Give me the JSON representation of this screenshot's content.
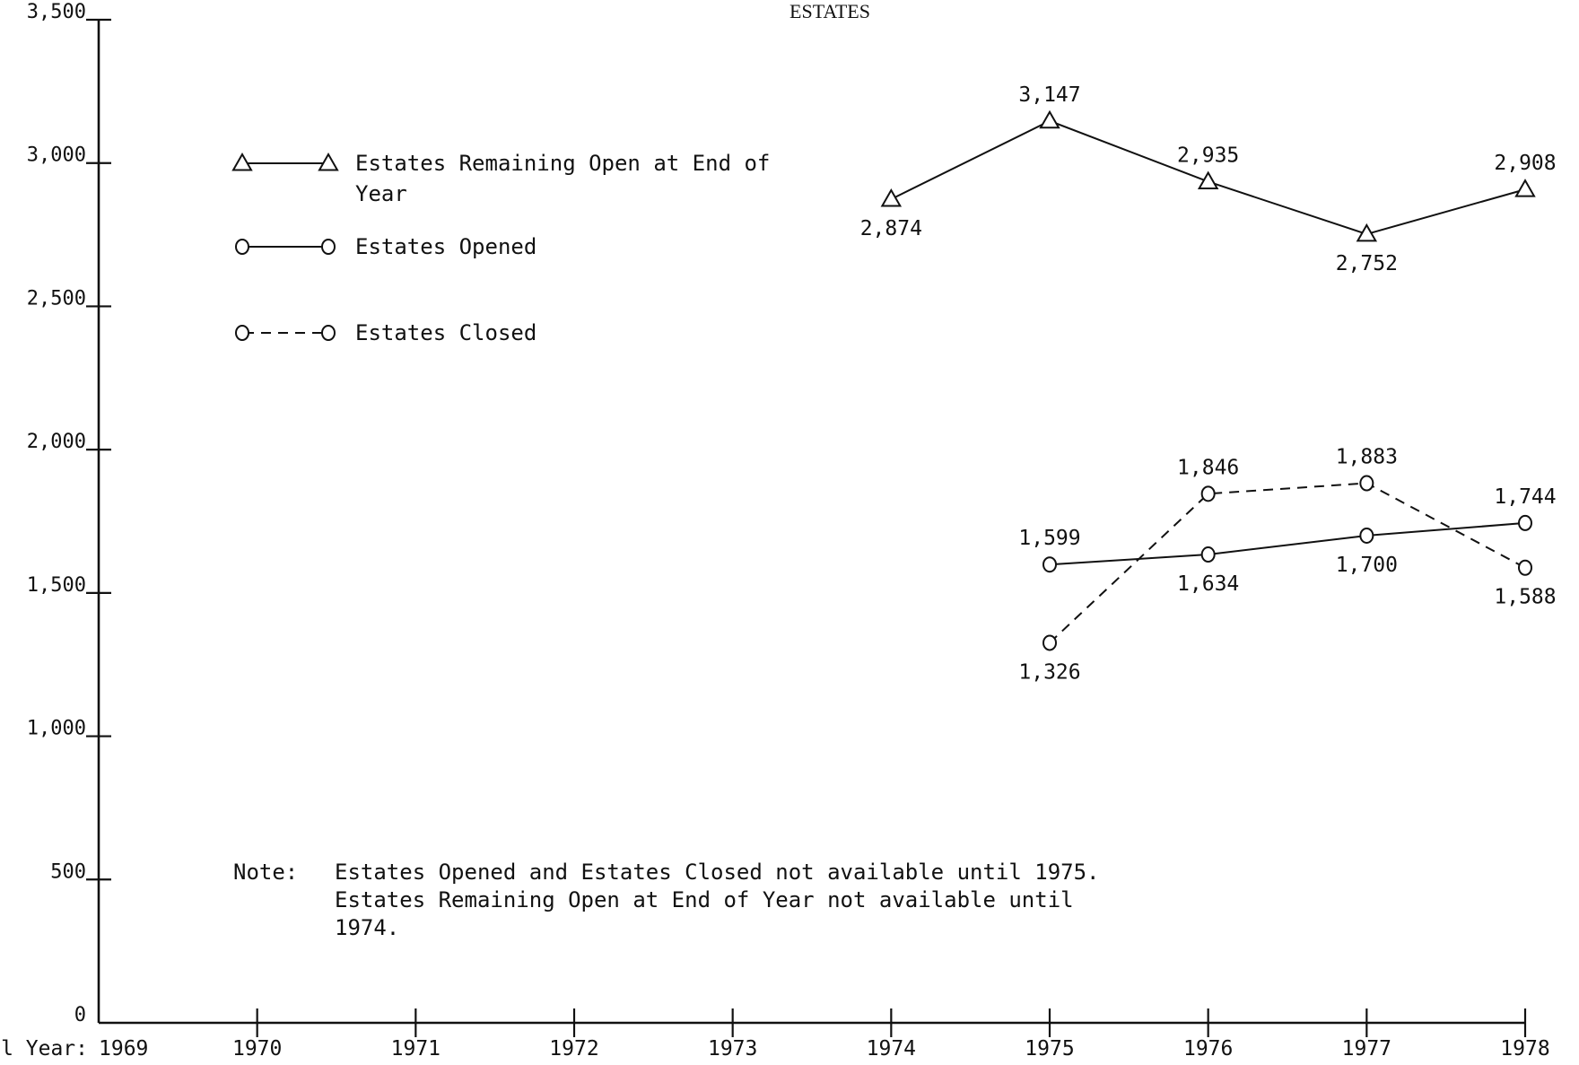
{
  "chart_data": {
    "type": "line",
    "title": "ESTATES",
    "x_label": "Fiscal Year:",
    "x": [
      1969,
      1970,
      1971,
      1972,
      1973,
      1974,
      1975,
      1976,
      1977,
      1978
    ],
    "x_tick_labels": [
      "1969",
      "1970",
      "1971",
      "1972",
      "1973",
      "1974",
      "1975",
      "1976",
      "1977",
      "1978"
    ],
    "ylim": [
      0,
      3500
    ],
    "y_ticks": [
      0,
      500,
      1000,
      1500,
      2000,
      2500,
      3000,
      3500
    ],
    "y_tick_labels": [
      "0",
      "500",
      "1,000",
      "1,500",
      "2,000",
      "2,500",
      "3,000",
      "3,500"
    ],
    "grid": false,
    "legend_position": "top-left",
    "series": [
      {
        "name": "Estates Remaining Open at End of Year",
        "legend_lines": [
          "Estates Remaining Open at End of",
          "Year"
        ],
        "marker": "triangle",
        "line_style": "solid",
        "x": [
          1974,
          1975,
          1976,
          1977,
          1978
        ],
        "values": [
          2874,
          3147,
          2935,
          2752,
          2908
        ],
        "labels": [
          "2,874",
          "3,147",
          "2,935",
          "2,752",
          "2,908"
        ],
        "label_positions": [
          "below",
          "above",
          "above",
          "below",
          "above"
        ]
      },
      {
        "name": "Estates Opened",
        "legend_lines": [
          "Estates Opened"
        ],
        "marker": "circle",
        "line_style": "solid",
        "x": [
          1975,
          1976,
          1977,
          1978
        ],
        "values": [
          1599,
          1634,
          1700,
          1744
        ],
        "labels": [
          "1,599",
          "1,634",
          "1,700",
          "1,744"
        ],
        "label_positions": [
          "above",
          "below",
          "below",
          "above"
        ]
      },
      {
        "name": "Estates Closed",
        "legend_lines": [
          "Estates Closed"
        ],
        "marker": "circle",
        "line_style": "dashed",
        "x": [
          1975,
          1976,
          1977,
          1978
        ],
        "values": [
          1326,
          1846,
          1883,
          1588
        ],
        "labels": [
          "1,326",
          "1,846",
          "1,883",
          "1,588"
        ],
        "label_positions": [
          "below",
          "above",
          "above",
          "below"
        ]
      }
    ],
    "annotations": {
      "note_prefix": "Note:",
      "note_lines": [
        "Estates Opened and Estates Closed not available until 1975.",
        "Estates Remaining Open at End of Year not available until",
        "1974."
      ]
    }
  }
}
